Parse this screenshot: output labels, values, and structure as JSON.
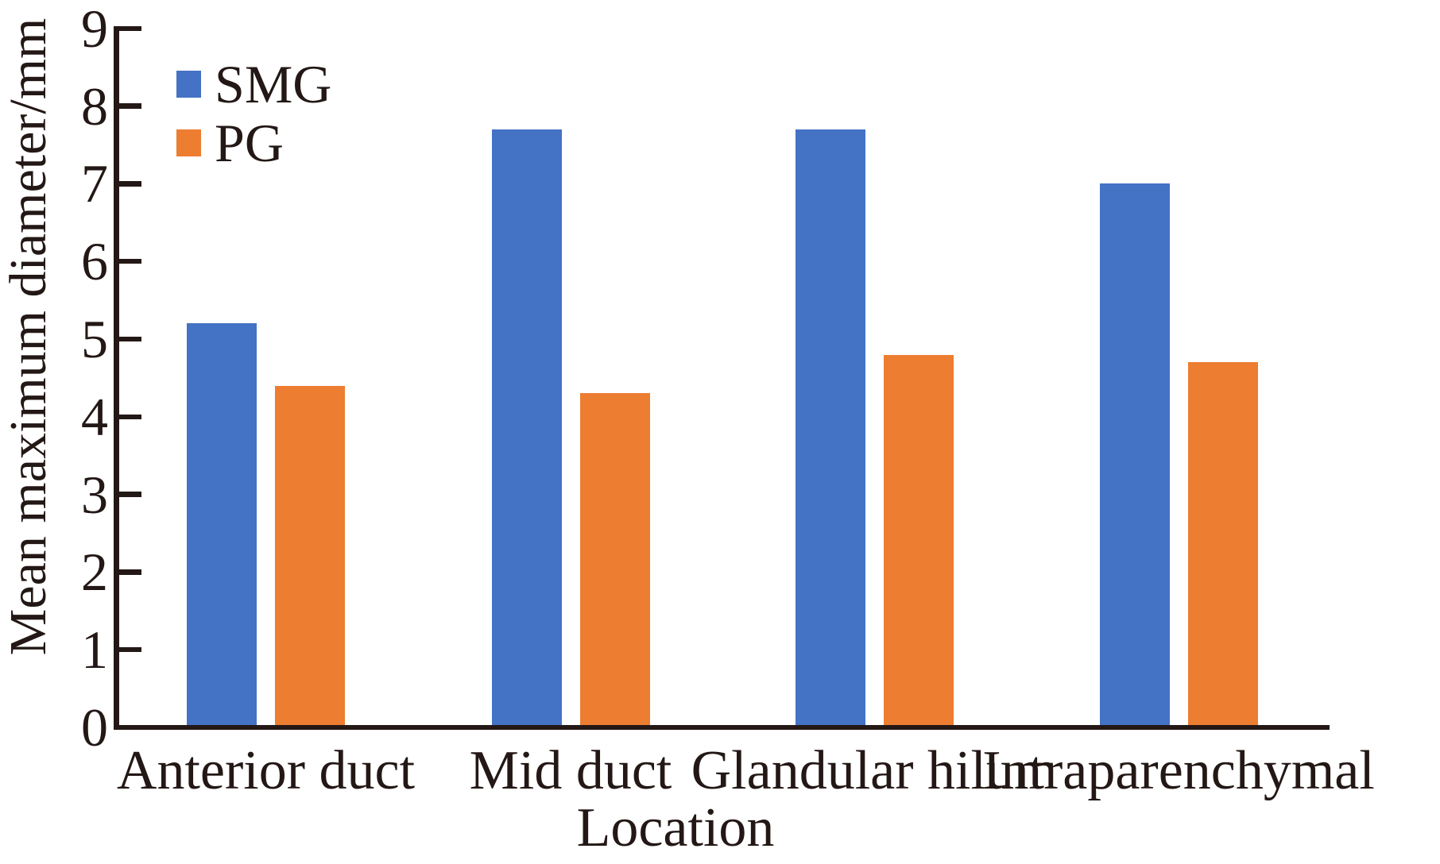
{
  "figure": {
    "background": "#ffffff",
    "text_color": "#231815",
    "axis_color": "#231815"
  },
  "chart_data": {
    "type": "bar",
    "title": "",
    "xlabel": "Location",
    "ylabel": "Mean maximum diameter/mm",
    "categories": [
      "Anterior duct",
      "Mid duct",
      "Glandular hilum",
      "Intraparenchymal"
    ],
    "series": [
      {
        "name": "SMG",
        "color": "#4472C4",
        "values": [
          5.2,
          7.7,
          7.7,
          7.0
        ]
      },
      {
        "name": "PG",
        "color": "#ED7D31",
        "values": [
          4.4,
          4.3,
          4.8,
          4.7
        ]
      }
    ],
    "ylim": [
      0,
      9
    ],
    "yticks": [
      0,
      1,
      2,
      3,
      4,
      5,
      6,
      7,
      8,
      9
    ],
    "grid": false,
    "legend_position": "top-left-inside"
  }
}
